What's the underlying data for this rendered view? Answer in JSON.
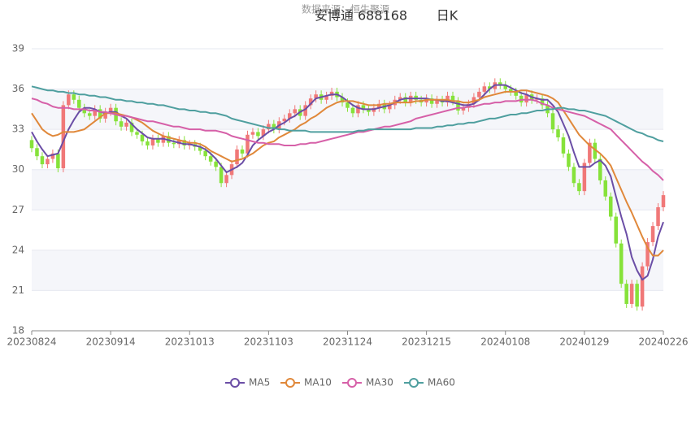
{
  "chart_data": {
    "type": "candlestick",
    "source": "数据来源：恒生聚源",
    "title": "安博通 688168",
    "period": "日K",
    "categories": [
      "20230824",
      null,
      null,
      null,
      null,
      null,
      null,
      null,
      null,
      null,
      null,
      null,
      null,
      null,
      null,
      "20230914",
      null,
      null,
      null,
      null,
      null,
      null,
      null,
      null,
      null,
      null,
      null,
      null,
      null,
      null,
      "20231013",
      null,
      null,
      null,
      null,
      null,
      null,
      null,
      null,
      null,
      null,
      null,
      null,
      null,
      null,
      "20231103",
      null,
      null,
      null,
      null,
      null,
      null,
      null,
      null,
      null,
      null,
      null,
      null,
      null,
      null,
      "20231124",
      null,
      null,
      null,
      null,
      null,
      null,
      null,
      null,
      null,
      null,
      null,
      null,
      null,
      null,
      "20231215",
      null,
      null,
      null,
      null,
      null,
      null,
      null,
      null,
      null,
      null,
      null,
      null,
      null,
      null,
      "20240108",
      null,
      null,
      null,
      null,
      null,
      null,
      null,
      null,
      null,
      null,
      null,
      null,
      null,
      null,
      "20240129",
      null,
      null,
      null,
      null,
      null,
      null,
      null,
      null,
      null,
      null,
      null,
      null,
      null,
      null,
      "20240226"
    ],
    "open": [
      32.2,
      31.6,
      31.0,
      30.4,
      30.8,
      31.2,
      30.1,
      34.8,
      35.6,
      35.2,
      34.6,
      34.2,
      34.0,
      34.5,
      33.8,
      34.3,
      34.6,
      33.6,
      33.2,
      33.5,
      32.8,
      32.6,
      32.1,
      31.8,
      32.3,
      32.0,
      32.5,
      32.0,
      31.9,
      32.2,
      31.8,
      31.9,
      31.7,
      31.4,
      31.0,
      30.6,
      30.2,
      29.0,
      29.6,
      30.4,
      31.5,
      31.2,
      32.6,
      32.8,
      32.5,
      33.0,
      33.4,
      33.0,
      33.6,
      33.8,
      34.2,
      34.5,
      34.0,
      34.8,
      35.3,
      35.6,
      35.2,
      35.5,
      35.8,
      35.4,
      35.0,
      34.6,
      34.2,
      34.8,
      34.5,
      34.3,
      34.6,
      34.9,
      34.5,
      34.8,
      35.2,
      35.4,
      35.0,
      35.5,
      35.2,
      35.0,
      35.3,
      34.9,
      35.2,
      35.0,
      35.5,
      35.1,
      34.4,
      34.6,
      34.9,
      35.4,
      35.8,
      36.2,
      36.0,
      36.5,
      36.3,
      36.0,
      35.8,
      35.5,
      35.0,
      35.6,
      35.2,
      35.3,
      34.8,
      34.2,
      33.0,
      32.4,
      31.2,
      30.2,
      29.0,
      28.4,
      30.5,
      32.0,
      30.8,
      29.2,
      28.0,
      26.5,
      24.5,
      21.5,
      20.0,
      21.5,
      19.8,
      22.8,
      24.6,
      25.8,
      27.2
    ],
    "close": [
      31.6,
      31.0,
      30.4,
      30.8,
      31.2,
      30.1,
      34.8,
      35.6,
      35.2,
      34.6,
      34.2,
      34.0,
      34.5,
      33.8,
      34.3,
      34.6,
      33.6,
      33.2,
      33.5,
      32.8,
      32.6,
      32.1,
      31.8,
      32.3,
      32.0,
      32.5,
      32.0,
      31.9,
      32.2,
      31.8,
      31.9,
      31.7,
      31.4,
      31.0,
      30.6,
      30.2,
      29.0,
      29.6,
      30.4,
      31.5,
      31.2,
      32.6,
      32.8,
      32.5,
      33.0,
      33.4,
      33.0,
      33.6,
      33.8,
      34.2,
      34.5,
      34.0,
      34.8,
      35.3,
      35.6,
      35.2,
      35.5,
      35.8,
      35.4,
      35.0,
      34.6,
      34.2,
      34.8,
      34.5,
      34.3,
      34.6,
      34.9,
      34.5,
      34.8,
      35.2,
      35.4,
      35.0,
      35.5,
      35.2,
      35.0,
      35.3,
      34.9,
      35.2,
      35.0,
      35.5,
      35.1,
      34.4,
      34.6,
      34.9,
      35.4,
      35.8,
      36.2,
      36.0,
      36.5,
      36.3,
      36.0,
      35.8,
      35.5,
      35.0,
      35.6,
      35.2,
      35.3,
      34.8,
      34.2,
      33.0,
      32.4,
      31.2,
      30.2,
      29.0,
      28.4,
      30.5,
      32.0,
      30.8,
      29.2,
      28.0,
      26.5,
      24.5,
      21.5,
      20.0,
      21.5,
      19.8,
      22.8,
      24.6,
      25.8,
      27.2,
      28.1
    ],
    "low": [
      31.3,
      30.7,
      30.1,
      30.1,
      30.5,
      29.8,
      29.8,
      34.5,
      34.9,
      34.3,
      33.9,
      33.7,
      33.7,
      33.5,
      33.5,
      34.0,
      33.3,
      32.9,
      32.9,
      32.5,
      32.3,
      31.8,
      31.5,
      31.5,
      31.7,
      31.7,
      31.7,
      31.6,
      31.6,
      31.5,
      31.5,
      31.4,
      31.1,
      30.7,
      30.3,
      29.9,
      28.7,
      28.7,
      29.3,
      30.1,
      30.9,
      30.9,
      32.3,
      32.2,
      32.2,
      32.7,
      32.7,
      32.7,
      33.3,
      33.5,
      33.9,
      33.7,
      33.7,
      34.5,
      35.0,
      34.9,
      34.9,
      35.2,
      35.1,
      34.7,
      34.3,
      33.9,
      33.9,
      34.2,
      34.0,
      34.0,
      34.3,
      34.2,
      34.2,
      34.5,
      34.9,
      34.7,
      34.7,
      34.9,
      34.7,
      34.7,
      34.6,
      34.6,
      34.7,
      34.7,
      34.8,
      34.1,
      34.1,
      34.3,
      34.6,
      35.1,
      35.5,
      35.7,
      35.7,
      36.0,
      35.7,
      35.5,
      35.2,
      34.7,
      34.7,
      34.9,
      34.9,
      34.5,
      33.9,
      32.7,
      32.1,
      30.9,
      29.9,
      28.7,
      28.1,
      28.1,
      30.2,
      30.5,
      28.9,
      27.7,
      26.2,
      24.2,
      21.2,
      19.7,
      19.7,
      19.5,
      19.5,
      22.5,
      24.3,
      25.5,
      26.9
    ],
    "high": [
      32.5,
      31.9,
      31.3,
      31.1,
      31.5,
      31.5,
      35.1,
      35.9,
      35.9,
      35.5,
      34.9,
      34.5,
      34.8,
      34.8,
      34.6,
      34.9,
      34.9,
      33.9,
      33.8,
      33.8,
      33.1,
      32.9,
      32.4,
      32.6,
      32.6,
      32.8,
      32.8,
      32.3,
      32.5,
      32.5,
      32.2,
      32.2,
      32.0,
      31.7,
      31.3,
      30.9,
      30.5,
      29.9,
      30.7,
      31.8,
      31.8,
      32.9,
      33.1,
      33.1,
      33.3,
      33.7,
      33.7,
      33.9,
      34.1,
      34.5,
      34.8,
      34.8,
      35.1,
      35.6,
      35.9,
      35.9,
      35.8,
      36.1,
      36.1,
      35.7,
      35.3,
      34.9,
      35.1,
      35.1,
      34.8,
      34.9,
      35.2,
      35.2,
      35.1,
      35.5,
      35.7,
      35.7,
      35.8,
      35.8,
      35.5,
      35.6,
      35.6,
      35.5,
      35.5,
      35.8,
      35.8,
      35.4,
      34.9,
      35.2,
      35.7,
      36.1,
      36.5,
      36.5,
      36.8,
      36.8,
      36.6,
      36.3,
      36.1,
      35.8,
      35.9,
      35.9,
      35.6,
      35.6,
      35.1,
      34.5,
      33.3,
      32.7,
      31.5,
      30.5,
      29.3,
      30.8,
      32.3,
      32.3,
      31.1,
      29.5,
      28.3,
      26.8,
      24.8,
      21.8,
      21.8,
      21.8,
      23.1,
      24.9,
      26.1,
      27.5,
      28.4
    ],
    "up_color": "#f07878",
    "down_color": "#86e23a",
    "series": [
      {
        "name": "MA5",
        "color": "#6b4ea6",
        "values": [
          32.8,
          32.1,
          31.5,
          31.0,
          31.1,
          31.2,
          32.1,
          33.0,
          33.7,
          34.3,
          34.6,
          34.6,
          34.5,
          34.3,
          34.2,
          34.3,
          34.3,
          34.0,
          33.8,
          33.4,
          33.0,
          32.7,
          32.4,
          32.3,
          32.3,
          32.3,
          32.2,
          32.1,
          32.0,
          31.9,
          31.9,
          31.8,
          31.7,
          31.5,
          31.2,
          30.8,
          30.3,
          29.8,
          30.0,
          30.2,
          30.5,
          31.1,
          31.8,
          32.2,
          32.5,
          32.8,
          33.0,
          33.3,
          33.5,
          33.8,
          34.0,
          34.3,
          34.5,
          34.9,
          35.3,
          35.4,
          35.5,
          35.6,
          35.6,
          35.4,
          35.1,
          34.8,
          34.6,
          34.5,
          34.5,
          34.5,
          34.6,
          34.7,
          34.8,
          35.0,
          35.2,
          35.3,
          35.3,
          35.3,
          35.3,
          35.3,
          35.2,
          35.2,
          35.1,
          35.1,
          35.0,
          34.9,
          34.8,
          34.8,
          34.9,
          35.2,
          35.6,
          36.0,
          36.3,
          36.3,
          36.3,
          36.1,
          35.9,
          35.7,
          35.6,
          35.4,
          35.3,
          35.2,
          35.2,
          34.8,
          34.3,
          33.4,
          32.5,
          31.3,
          30.2,
          30.2,
          30.2,
          30.5,
          30.7,
          30.3,
          29.5,
          28.0,
          26.5,
          25.2,
          23.5,
          22.5,
          21.8,
          22.1,
          23.3,
          25.0,
          26.1
        ]
      },
      {
        "name": "MA10",
        "color": "#e0883a",
        "values": [
          34.2,
          33.6,
          33.0,
          32.7,
          32.5,
          32.6,
          32.8,
          32.8,
          32.8,
          32.9,
          33.0,
          33.3,
          33.6,
          33.9,
          34.2,
          34.2,
          34.2,
          34.1,
          34.0,
          33.9,
          33.7,
          33.5,
          33.2,
          32.9,
          32.7,
          32.5,
          32.4,
          32.3,
          32.2,
          32.1,
          32.0,
          32.0,
          31.9,
          31.7,
          31.4,
          31.2,
          31.0,
          30.8,
          30.6,
          30.7,
          30.8,
          31.0,
          31.2,
          31.5,
          31.8,
          32.0,
          32.1,
          32.4,
          32.6,
          32.8,
          33.0,
          33.3,
          33.5,
          33.8,
          34.0,
          34.3,
          34.6,
          34.8,
          35.0,
          35.1,
          35.1,
          35.1,
          35.0,
          34.9,
          34.8,
          34.8,
          34.8,
          34.9,
          34.9,
          35.0,
          35.0,
          35.0,
          35.0,
          35.1,
          35.1,
          35.2,
          35.2,
          35.2,
          35.2,
          35.2,
          35.1,
          35.1,
          35.0,
          35.0,
          35.1,
          35.2,
          35.4,
          35.5,
          35.6,
          35.7,
          35.8,
          35.8,
          35.8,
          35.9,
          35.9,
          35.8,
          35.7,
          35.6,
          35.5,
          35.3,
          35.0,
          34.4,
          33.8,
          33.2,
          32.6,
          32.2,
          31.8,
          31.5,
          31.2,
          30.8,
          30.3,
          29.4,
          28.5,
          27.6,
          26.8,
          25.9,
          25.0,
          24.2,
          23.6,
          23.6,
          24.0
        ]
      },
      {
        "name": "MA30",
        "color": "#d660a8",
        "values": [
          35.3,
          35.2,
          35.0,
          34.9,
          34.7,
          34.6,
          34.6,
          34.6,
          34.5,
          34.5,
          34.5,
          34.4,
          34.4,
          34.3,
          34.3,
          34.2,
          34.1,
          34.0,
          34.0,
          33.9,
          33.8,
          33.7,
          33.6,
          33.6,
          33.5,
          33.4,
          33.3,
          33.2,
          33.2,
          33.1,
          33.0,
          33.0,
          33.0,
          32.9,
          32.9,
          32.9,
          32.8,
          32.7,
          32.5,
          32.4,
          32.3,
          32.2,
          32.1,
          32.0,
          32.0,
          31.9,
          31.9,
          31.9,
          31.8,
          31.8,
          31.8,
          31.9,
          31.9,
          32.0,
          32.0,
          32.1,
          32.2,
          32.3,
          32.4,
          32.5,
          32.6,
          32.7,
          32.8,
          32.8,
          32.9,
          33.0,
          33.1,
          33.2,
          33.2,
          33.3,
          33.4,
          33.5,
          33.6,
          33.8,
          33.9,
          34.0,
          34.1,
          34.2,
          34.3,
          34.4,
          34.5,
          34.6,
          34.6,
          34.7,
          34.7,
          34.8,
          34.9,
          34.9,
          35.0,
          35.0,
          35.1,
          35.1,
          35.1,
          35.2,
          35.2,
          35.2,
          35.1,
          34.9,
          34.8,
          34.6,
          34.5,
          34.4,
          34.3,
          34.2,
          34.1,
          34.0,
          33.8,
          33.6,
          33.4,
          33.2,
          33.0,
          32.6,
          32.2,
          31.8,
          31.4,
          31.0,
          30.6,
          30.3,
          29.9,
          29.6,
          29.2
        ]
      },
      {
        "name": "MA60",
        "color": "#4f9f9f",
        "values": [
          36.2,
          36.1,
          36.0,
          35.9,
          35.9,
          35.8,
          35.8,
          35.7,
          35.7,
          35.6,
          35.6,
          35.5,
          35.5,
          35.4,
          35.4,
          35.3,
          35.2,
          35.2,
          35.1,
          35.1,
          35.0,
          35.0,
          34.9,
          34.9,
          34.8,
          34.8,
          34.7,
          34.6,
          34.5,
          34.5,
          34.4,
          34.4,
          34.3,
          34.3,
          34.2,
          34.2,
          34.1,
          34.0,
          33.8,
          33.7,
          33.6,
          33.5,
          33.4,
          33.3,
          33.2,
          33.1,
          33.1,
          33.0,
          33.0,
          32.9,
          32.9,
          32.9,
          32.9,
          32.8,
          32.8,
          32.8,
          32.8,
          32.8,
          32.8,
          32.8,
          32.8,
          32.8,
          32.9,
          32.9,
          33.0,
          33.0,
          33.0,
          33.0,
          33.0,
          33.0,
          33.0,
          33.0,
          33.0,
          33.1,
          33.1,
          33.1,
          33.1,
          33.2,
          33.2,
          33.3,
          33.3,
          33.4,
          33.4,
          33.5,
          33.5,
          33.6,
          33.7,
          33.8,
          33.8,
          33.9,
          34.0,
          34.1,
          34.1,
          34.2,
          34.2,
          34.3,
          34.4,
          34.4,
          34.5,
          34.5,
          34.6,
          34.6,
          34.5,
          34.5,
          34.4,
          34.4,
          34.3,
          34.2,
          34.1,
          34.0,
          33.8,
          33.6,
          33.4,
          33.2,
          33.0,
          32.8,
          32.7,
          32.5,
          32.4,
          32.2,
          32.1
        ]
      }
    ],
    "ylim": [
      18,
      39
    ],
    "yticks": [
      18,
      21,
      24,
      27,
      30,
      33,
      36,
      39
    ],
    "grid": true,
    "legend": "bottom"
  }
}
